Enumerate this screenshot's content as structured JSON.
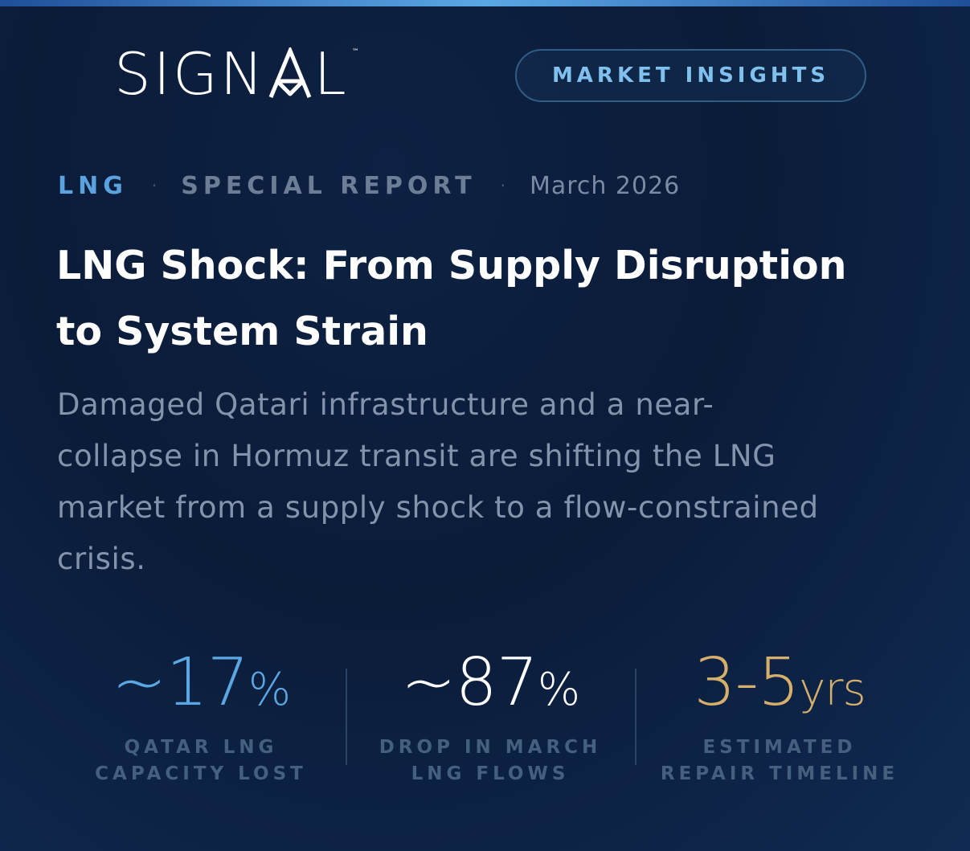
{
  "brand": {
    "logo_text_left": "SIGN",
    "logo_text_right": "L",
    "trademark": "™"
  },
  "badge": {
    "label": "MARKET INSIGHTS"
  },
  "meta": {
    "category": "LNG",
    "separator": "·",
    "type": "SPECIAL REPORT",
    "date": "March 2026"
  },
  "article": {
    "headline_line1": "LNG Shock: From Supply Disruption",
    "headline_line2": "to System Strain",
    "dek_line1": "Damaged Qatari infrastructure and a near-",
    "dek_line2": "collapse in Hormuz transit are shifting the LNG",
    "dek_line3": "market from a supply shock to a flow-constrained",
    "dek_line4": "crisis."
  },
  "stats": [
    {
      "value_main": "~17",
      "value_unit": "%",
      "label_line1": "QATAR LNG",
      "label_line2": "CAPACITY LOST",
      "color": "#5aa8e3"
    },
    {
      "value_main": "~87",
      "value_unit": "%",
      "label_line1": "DROP IN MARCH",
      "label_line2": "LNG FLOWS",
      "color": "#ffffff"
    },
    {
      "value_main": "3-5",
      "value_unit": "yrs",
      "label_line1": "ESTIMATED",
      "label_line2": "REPAIR TIMELINE",
      "color": "#d6b06a"
    }
  ],
  "colors": {
    "background": "#0b1c39",
    "accent_blue": "#5ba3de",
    "accent_gold": "#d6b06a",
    "muted_text": "#8393ab"
  },
  "icons": {
    "logo_a_mark": "stylized-a-triangle-icon"
  }
}
